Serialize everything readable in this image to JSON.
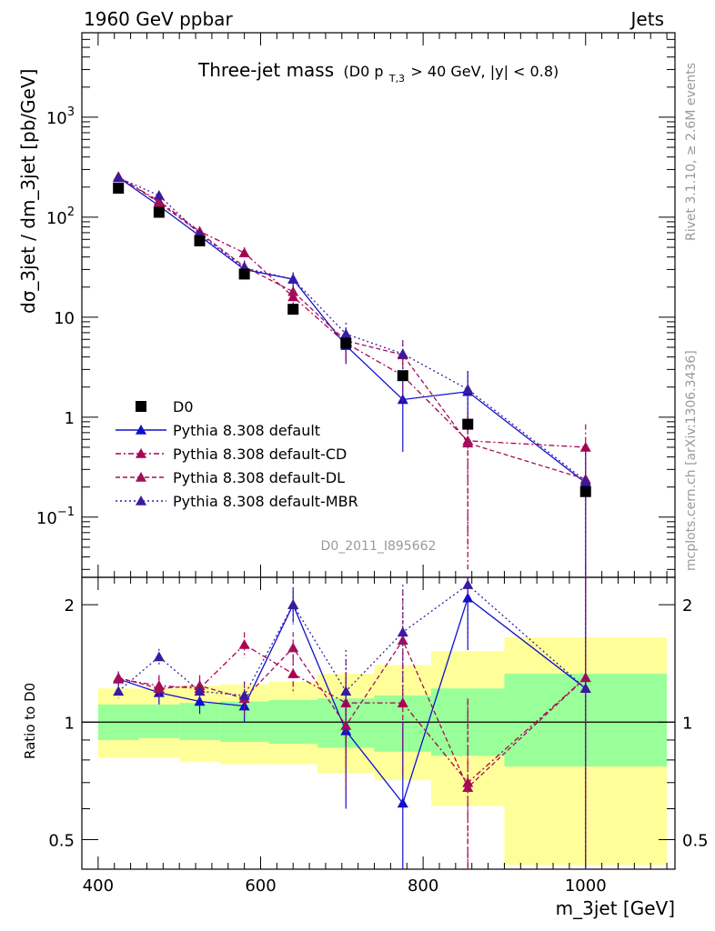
{
  "header": {
    "left": "1960 GeV ppbar",
    "right": "Jets"
  },
  "title": {
    "main": "Three-jet mass",
    "paren_open": "(D0 p",
    "sub": "T,3",
    "rest": " > 40 GeV, |y| < 0.8)"
  },
  "watermark": "D0_2011_I895662",
  "side_text": {
    "top": "Rivet 3.1.10, ≥ 2.6M events",
    "bottom": "mcplots.cern.ch [arXiv:1306.3436]"
  },
  "axes": {
    "ylabel_main": "dσ_3jet / dm_3jet [pb/GeV]",
    "ylabel_ratio": "Ratio to D0",
    "xlabel": "m_3jet [GeV]",
    "x_ticks": [
      "400",
      "600",
      "800",
      "1000"
    ],
    "y_main_ticks": [
      "10",
      "1",
      "10"
    ],
    "y_main_exp_labels": [
      {
        "base": "10",
        "exp": "3"
      },
      {
        "base": "10",
        "exp": "2"
      },
      {
        "base": "10",
        "exp": "−1"
      }
    ],
    "y_ratio_ticks": [
      "2",
      "1",
      "0.5"
    ]
  },
  "legend": [
    {
      "label": "D0",
      "color": "#000000",
      "marker": "square",
      "dash": "none"
    },
    {
      "label": "Pythia 8.308 default",
      "color": "#1010cc",
      "marker": "triangle",
      "dash": "solid"
    },
    {
      "label": "Pythia 8.308 default-CD",
      "color": "#aa0055",
      "marker": "triangle",
      "dash": "6,3,2,3"
    },
    {
      "label": "Pythia 8.308 default-DL",
      "color": "#a0105a",
      "marker": "triangle",
      "dash": "5,3"
    },
    {
      "label": "Pythia 8.308 default-MBR",
      "color": "#3a1aa0",
      "marker": "triangle",
      "dash": "2,3"
    }
  ],
  "chart_data": {
    "type": "line",
    "title": "Three-jet mass (D0 p_T,3 > 40 GeV, |y| < 0.8)",
    "xlabel": "m_3jet [GeV]",
    "ylabel": "dσ_3jet / dm_3jet [pb/GeV]",
    "ratio_ylabel": "Ratio to D0",
    "xlim": [
      380,
      1110
    ],
    "ylim": [
      0.025,
      7000
    ],
    "yscale": "log",
    "ratio_ylim": [
      0.42,
      2.35
    ],
    "ratio_yscale": "log",
    "legend_position": "bottom-left",
    "x": [
      425,
      475,
      525,
      580,
      640,
      705,
      775,
      855,
      1000
    ],
    "bins": [
      [
        400,
        450
      ],
      [
        450,
        500
      ],
      [
        500,
        550
      ],
      [
        550,
        610
      ],
      [
        610,
        670
      ],
      [
        670,
        740
      ],
      [
        740,
        810
      ],
      [
        810,
        900
      ],
      [
        900,
        1100
      ]
    ],
    "data": {
      "name": "D0",
      "values": [
        195,
        112,
        58,
        27,
        12,
        5.5,
        2.6,
        0.85,
        0.18
      ],
      "band_inner": [
        [
          0.9,
          1.11
        ],
        [
          0.91,
          1.11
        ],
        [
          0.9,
          1.12
        ],
        [
          0.89,
          1.13
        ],
        [
          0.88,
          1.14
        ],
        [
          0.86,
          1.15
        ],
        [
          0.84,
          1.17
        ],
        [
          0.82,
          1.22
        ],
        [
          0.77,
          1.33
        ]
      ],
      "band_outer": [
        [
          0.81,
          1.22
        ],
        [
          0.81,
          1.22
        ],
        [
          0.79,
          1.24
        ],
        [
          0.78,
          1.25
        ],
        [
          0.78,
          1.27
        ],
        [
          0.74,
          1.33
        ],
        [
          0.71,
          1.4
        ],
        [
          0.61,
          1.52
        ],
        [
          0.43,
          1.65
        ]
      ]
    },
    "series": [
      {
        "name": "Pythia 8.308 default",
        "values": [
          250,
          130,
          65,
          30,
          24,
          5.2,
          1.5,
          1.8,
          0.22
        ],
        "errors": [
          20,
          12,
          8,
          4,
          4,
          1.8,
          1.05,
          1.1,
          0.3
        ],
        "ratio": [
          1.29,
          1.19,
          1.13,
          1.1,
          2.0,
          0.95,
          0.62,
          2.08,
          1.22
        ],
        "ratio_err": [
          0.05,
          0.08,
          0.08,
          0.1,
          0.2,
          0.35,
          0.38,
          0.55,
          1.5
        ]
      },
      {
        "name": "Pythia 8.308 default-CD",
        "values": [
          252,
          145,
          72,
          44,
          16,
          5.5,
          2.6,
          0.58,
          0.5
        ],
        "errors": [
          20,
          14,
          9,
          6,
          3,
          2,
          1.2,
          0.55,
          0.35
        ],
        "ratio": [
          1.29,
          1.24,
          1.22,
          1.58,
          1.33,
          1.12,
          1.12,
          0.7,
          1.3
        ],
        "ratio_err": [
          0.05,
          0.08,
          0.08,
          0.12,
          0.15,
          0.33,
          0.4,
          0.45,
          1.5
        ]
      },
      {
        "name": "Pythia 8.308 default-DL",
        "values": [
          255,
          140,
          70,
          32,
          18,
          5.8,
          4.2,
          0.55,
          0.24
        ],
        "errors": [
          20,
          14,
          9,
          5,
          3,
          2,
          1.5,
          0.5,
          0.3
        ],
        "ratio": [
          1.3,
          1.22,
          1.24,
          1.15,
          1.55,
          0.98,
          1.62,
          0.68,
          1.3
        ],
        "ratio_err": [
          0.05,
          0.08,
          0.08,
          0.12,
          0.15,
          0.33,
          0.55,
          0.45,
          1.5
        ]
      },
      {
        "name": "Pythia 8.308 default-MBR",
        "values": [
          248,
          165,
          68,
          31,
          24,
          6.8,
          4.3,
          1.9,
          0.23
        ],
        "errors": [
          20,
          14,
          9,
          5,
          4,
          2,
          1.6,
          1.0,
          0.3
        ],
        "ratio": [
          1.2,
          1.47,
          1.2,
          1.17,
          2.0,
          1.2,
          1.7,
          2.25,
          1.22
        ],
        "ratio_err": [
          0.05,
          0.07,
          0.08,
          0.1,
          0.22,
          0.33,
          0.55,
          0.6,
          1.5
        ]
      }
    ]
  }
}
